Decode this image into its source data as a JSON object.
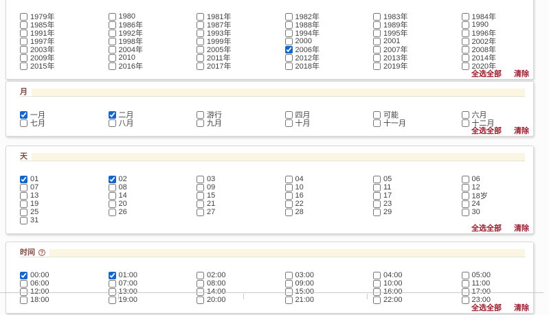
{
  "colors": {
    "accent_blue": "#1467c8",
    "link_maroon": "#9b1e2f",
    "header_text": "#7a4a3e",
    "header_bar_cream": "#faf6e1"
  },
  "actions": {
    "select_all": "全选全部",
    "clear": "清除"
  },
  "sections": [
    {
      "id": "year",
      "title": "",
      "columns": [
        [
          {
            "label": "1979年",
            "checked": false
          },
          {
            "label": "1985年",
            "checked": false
          },
          {
            "label": "1991年",
            "checked": false
          },
          {
            "label": "1997年",
            "checked": false
          },
          {
            "label": "2003年",
            "checked": false
          },
          {
            "label": "2009年",
            "checked": false
          },
          {
            "label": "2015年",
            "checked": false
          }
        ],
        [
          {
            "label": "1980",
            "checked": false
          },
          {
            "label": "1986年",
            "checked": false
          },
          {
            "label": "1992年",
            "checked": false
          },
          {
            "label": "1998年",
            "checked": false
          },
          {
            "label": "2004年",
            "checked": false
          },
          {
            "label": "2010",
            "checked": false
          },
          {
            "label": "2016年",
            "checked": false
          }
        ],
        [
          {
            "label": "1981年",
            "checked": false
          },
          {
            "label": "1987年",
            "checked": false
          },
          {
            "label": "1993年",
            "checked": false
          },
          {
            "label": "1999年",
            "checked": false
          },
          {
            "label": "2005年",
            "checked": false
          },
          {
            "label": "2011年",
            "checked": false
          },
          {
            "label": "2017年",
            "checked": false
          }
        ],
        [
          {
            "label": "1982年",
            "checked": false
          },
          {
            "label": "1988年",
            "checked": false
          },
          {
            "label": "1994年",
            "checked": false
          },
          {
            "label": "2000",
            "checked": false
          },
          {
            "label": "2006年",
            "checked": true
          },
          {
            "label": "2012年",
            "checked": false
          },
          {
            "label": "2018年",
            "checked": false
          }
        ],
        [
          {
            "label": "1983年",
            "checked": false
          },
          {
            "label": "1989年",
            "checked": false
          },
          {
            "label": "1995年",
            "checked": false
          },
          {
            "label": "2001",
            "checked": false
          },
          {
            "label": "2007年",
            "checked": false
          },
          {
            "label": "2013年",
            "checked": false
          },
          {
            "label": "2019年",
            "checked": false
          }
        ],
        [
          {
            "label": "1984年",
            "checked": false
          },
          {
            "label": "1990",
            "checked": false
          },
          {
            "label": "1996年",
            "checked": false
          },
          {
            "label": "2002年",
            "checked": false
          },
          {
            "label": "2008年",
            "checked": false
          },
          {
            "label": "2014年",
            "checked": false
          },
          {
            "label": "2020年",
            "checked": false
          }
        ]
      ]
    },
    {
      "id": "month",
      "title": "月",
      "columns": [
        [
          {
            "label": "一月",
            "checked": true
          },
          {
            "label": "七月",
            "checked": false
          }
        ],
        [
          {
            "label": "二月",
            "checked": true
          },
          {
            "label": "八月",
            "checked": false
          }
        ],
        [
          {
            "label": "游行",
            "checked": false
          },
          {
            "label": "九月",
            "checked": false
          }
        ],
        [
          {
            "label": "四月",
            "checked": false
          },
          {
            "label": "十月",
            "checked": false
          }
        ],
        [
          {
            "label": "可能",
            "checked": false
          },
          {
            "label": "十一月",
            "checked": false
          }
        ],
        [
          {
            "label": "六月",
            "checked": false
          },
          {
            "label": "十二月",
            "checked": false
          }
        ]
      ]
    },
    {
      "id": "day",
      "title": "天",
      "columns": [
        [
          {
            "label": "01",
            "checked": true
          },
          {
            "label": "07",
            "checked": false
          },
          {
            "label": "13",
            "checked": false
          },
          {
            "label": "19",
            "checked": false
          },
          {
            "label": "25",
            "checked": false
          },
          {
            "label": "31",
            "checked": false
          }
        ],
        [
          {
            "label": "02",
            "checked": true
          },
          {
            "label": "08",
            "checked": false
          },
          {
            "label": "14",
            "checked": false
          },
          {
            "label": "20",
            "checked": false
          },
          {
            "label": "26",
            "checked": false
          }
        ],
        [
          {
            "label": "03",
            "checked": false
          },
          {
            "label": "09",
            "checked": false
          },
          {
            "label": "15",
            "checked": false
          },
          {
            "label": "21",
            "checked": false
          },
          {
            "label": "27",
            "checked": false
          }
        ],
        [
          {
            "label": "04",
            "checked": false
          },
          {
            "label": "10",
            "checked": false
          },
          {
            "label": "16",
            "checked": false
          },
          {
            "label": "22",
            "checked": false
          },
          {
            "label": "28",
            "checked": false
          }
        ],
        [
          {
            "label": "05",
            "checked": false
          },
          {
            "label": "11",
            "checked": false
          },
          {
            "label": "17",
            "checked": false
          },
          {
            "label": "23",
            "checked": false
          },
          {
            "label": "29",
            "checked": false
          }
        ],
        [
          {
            "label": "06",
            "checked": false
          },
          {
            "label": "12",
            "checked": false
          },
          {
            "label": "18岁",
            "checked": false
          },
          {
            "label": "24",
            "checked": false
          },
          {
            "label": "30",
            "checked": false
          }
        ]
      ]
    },
    {
      "id": "time",
      "title": "时间",
      "help": "?",
      "columns": [
        [
          {
            "label": "00:00",
            "checked": true
          },
          {
            "label": "06:00",
            "checked": false
          },
          {
            "label": "12:00",
            "checked": false
          },
          {
            "label": "18:00",
            "checked": false
          }
        ],
        [
          {
            "label": "01:00",
            "checked": true
          },
          {
            "label": "07:00",
            "checked": false
          },
          {
            "label": "13:00",
            "checked": false
          },
          {
            "label": "19:00",
            "checked": false
          }
        ],
        [
          {
            "label": "02:00",
            "checked": false
          },
          {
            "label": "08:00",
            "checked": false
          },
          {
            "label": "14:00",
            "checked": false
          },
          {
            "label": "20:00",
            "checked": false
          }
        ],
        [
          {
            "label": "03:00",
            "checked": false
          },
          {
            "label": "09:00",
            "checked": false
          },
          {
            "label": "15:00",
            "checked": false
          },
          {
            "label": "21:00",
            "checked": false
          }
        ],
        [
          {
            "label": "04:00",
            "checked": false
          },
          {
            "label": "10:00",
            "checked": false
          },
          {
            "label": "16:00",
            "checked": false
          },
          {
            "label": "22:00",
            "checked": false
          }
        ],
        [
          {
            "label": "05:00",
            "checked": false
          },
          {
            "label": "11:00",
            "checked": false
          },
          {
            "label": "17:00",
            "checked": false
          },
          {
            "label": "23:00",
            "checked": false
          }
        ]
      ]
    }
  ],
  "next_table_tick_positions": [
    172,
    354,
    534
  ]
}
